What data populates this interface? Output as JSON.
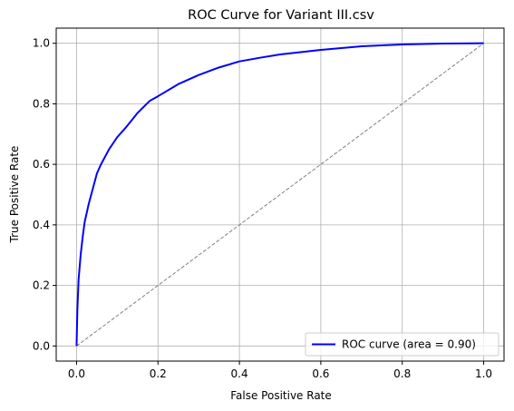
{
  "chart_data": {
    "type": "line",
    "title": "ROC Curve for Variant III.csv",
    "xlabel": "False Positive Rate",
    "ylabel": "True Positive Rate",
    "xlim": [
      -0.05,
      1.05
    ],
    "ylim": [
      -0.05,
      1.05
    ],
    "x_ticks": [
      "0.0",
      "0.2",
      "0.4",
      "0.6",
      "0.8",
      "1.0"
    ],
    "y_ticks": [
      "0.0",
      "0.2",
      "0.4",
      "0.6",
      "0.8",
      "1.0"
    ],
    "grid": true,
    "legend_position": "bottom-right",
    "series": [
      {
        "name": "ROC curve (area = 0.90)",
        "color": "#0000ff",
        "style": "solid",
        "x": [
          0.0,
          0.002,
          0.005,
          0.01,
          0.015,
          0.02,
          0.03,
          0.04,
          0.05,
          0.06,
          0.08,
          0.1,
          0.12,
          0.15,
          0.18,
          0.2,
          0.25,
          0.3,
          0.35,
          0.4,
          0.45,
          0.5,
          0.6,
          0.7,
          0.8,
          0.9,
          1.0
        ],
        "y": [
          0.0,
          0.12,
          0.22,
          0.3,
          0.36,
          0.41,
          0.47,
          0.52,
          0.57,
          0.6,
          0.65,
          0.69,
          0.72,
          0.77,
          0.81,
          0.825,
          0.865,
          0.895,
          0.92,
          0.94,
          0.952,
          0.963,
          0.978,
          0.99,
          0.996,
          0.999,
          1.0
        ]
      },
      {
        "name": "",
        "color": "#808080",
        "style": "dashed",
        "x": [
          0,
          1
        ],
        "y": [
          0,
          1
        ]
      }
    ]
  }
}
